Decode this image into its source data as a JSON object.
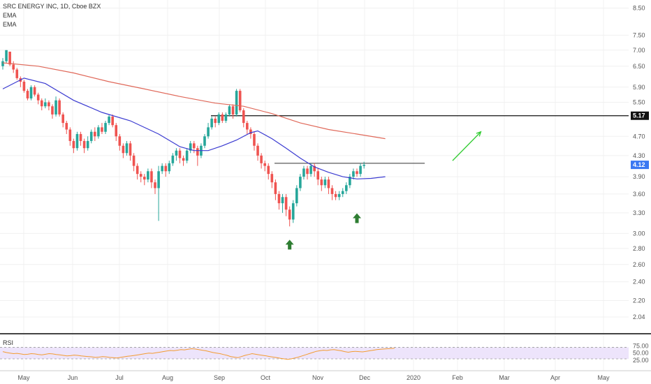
{
  "legend": {
    "title": "SRC ENERGY INC, 1D, Cboe BZX",
    "ema1": "EMA",
    "ema2": "EMA"
  },
  "rsi_label": "RSI",
  "colors": {
    "up": "#26a69a",
    "down": "#ef5350",
    "ema_fast": "#3b3bd1",
    "ema_slow": "#e0695a",
    "arrow_up": "#2e7d32",
    "projection": "#33cc33",
    "rsi_line": "#f39c32",
    "rsi_band": "#ede4fb",
    "current_price_tag": "#3a78f2",
    "resistance_tag": "#111111"
  },
  "chart_data": {
    "type": "candlestick",
    "ylim": [
      1.9,
      8.6
    ],
    "y_ticks": [
      "8.50",
      "7.50",
      "7.00",
      "6.50",
      "5.90",
      "5.50",
      "4.70",
      "4.30",
      "3.90",
      "3.60",
      "3.30",
      "3.00",
      "2.80",
      "2.60",
      "2.40",
      "2.20",
      "2.04"
    ],
    "x_ticks": [
      "May",
      "Jun",
      "Jul",
      "Aug",
      "Sep",
      "Oct",
      "Nov",
      "Dec",
      "2020",
      "Feb",
      "Mar",
      "Apr",
      "May"
    ],
    "price_tags": {
      "resistance": "5.17",
      "current": "4.12"
    },
    "levels": {
      "resistance": 5.17,
      "neckline": 4.15
    },
    "projection": {
      "from": [
        127,
        4.2
      ],
      "to": [
        135,
        4.8
      ]
    },
    "up_arrows": [
      {
        "x": 81,
        "y": 2.85
      },
      {
        "x": 100,
        "y": 3.22
      }
    ],
    "ema_fast_points": [
      [
        0,
        5.85
      ],
      [
        6,
        6.15
      ],
      [
        12,
        6.0
      ],
      [
        20,
        5.55
      ],
      [
        28,
        5.25
      ],
      [
        36,
        5.05
      ],
      [
        44,
        4.75
      ],
      [
        50,
        4.48
      ],
      [
        54,
        4.4
      ],
      [
        58,
        4.4
      ],
      [
        62,
        4.5
      ],
      [
        66,
        4.62
      ],
      [
        70,
        4.78
      ],
      [
        72,
        4.82
      ],
      [
        76,
        4.65
      ],
      [
        80,
        4.45
      ],
      [
        84,
        4.25
      ],
      [
        88,
        4.08
      ],
      [
        92,
        3.98
      ],
      [
        96,
        3.9
      ],
      [
        100,
        3.86
      ],
      [
        104,
        3.87
      ],
      [
        108,
        3.9
      ]
    ],
    "ema_slow_points": [
      [
        0,
        6.6
      ],
      [
        10,
        6.5
      ],
      [
        20,
        6.3
      ],
      [
        30,
        6.05
      ],
      [
        40,
        5.85
      ],
      [
        50,
        5.65
      ],
      [
        60,
        5.48
      ],
      [
        68,
        5.4
      ],
      [
        76,
        5.22
      ],
      [
        84,
        5.0
      ],
      [
        92,
        4.85
      ],
      [
        100,
        4.75
      ],
      [
        108,
        4.65
      ]
    ],
    "candles": [
      [
        6.5,
        6.65,
        6.75,
        6.4
      ],
      [
        6.65,
        7.0,
        7.0,
        6.6
      ],
      [
        6.95,
        6.55,
        6.95,
        6.5
      ],
      [
        6.55,
        6.4,
        6.65,
        6.3
      ],
      [
        6.4,
        6.15,
        6.45,
        6.1
      ],
      [
        6.15,
        6.05,
        6.2,
        5.9
      ],
      [
        6.05,
        5.8,
        6.1,
        5.75
      ],
      [
        5.8,
        5.6,
        5.85,
        5.55
      ],
      [
        5.6,
        5.9,
        5.95,
        5.55
      ],
      [
        5.9,
        5.7,
        5.95,
        5.65
      ],
      [
        5.7,
        5.55,
        5.75,
        5.45
      ],
      [
        5.55,
        5.4,
        5.6,
        5.3
      ],
      [
        5.4,
        5.5,
        5.6,
        5.35
      ],
      [
        5.5,
        5.4,
        5.55,
        5.3
      ],
      [
        5.4,
        5.2,
        5.45,
        5.1
      ],
      [
        5.2,
        5.55,
        5.65,
        5.15
      ],
      [
        5.55,
        5.2,
        5.6,
        5.15
      ],
      [
        5.2,
        5.0,
        5.25,
        4.9
      ],
      [
        5.0,
        4.85,
        5.05,
        4.75
      ],
      [
        4.85,
        4.6,
        4.9,
        4.5
      ],
      [
        4.6,
        4.45,
        4.65,
        4.35
      ],
      [
        4.45,
        4.75,
        4.8,
        4.4
      ],
      [
        4.75,
        4.6,
        4.8,
        4.5
      ],
      [
        4.6,
        4.45,
        4.65,
        4.35
      ],
      [
        4.45,
        4.6,
        4.7,
        4.4
      ],
      [
        4.6,
        4.8,
        4.85,
        4.55
      ],
      [
        4.8,
        4.7,
        4.9,
        4.6
      ],
      [
        4.7,
        4.9,
        4.95,
        4.65
      ],
      [
        4.9,
        4.8,
        5.0,
        4.75
      ],
      [
        4.8,
        5.0,
        5.05,
        4.75
      ],
      [
        5.0,
        5.15,
        5.2,
        4.95
      ],
      [
        5.15,
        4.95,
        5.2,
        4.9
      ],
      [
        4.95,
        4.7,
        5.0,
        4.6
      ],
      [
        4.7,
        4.5,
        4.75,
        4.4
      ],
      [
        4.5,
        4.35,
        4.55,
        4.25
      ],
      [
        4.35,
        4.55,
        4.6,
        4.3
      ],
      [
        4.55,
        4.3,
        4.6,
        4.2
      ],
      [
        4.3,
        4.1,
        4.35,
        4.0
      ],
      [
        4.1,
        3.95,
        4.15,
        3.85
      ],
      [
        3.95,
        3.9,
        4.0,
        3.8
      ],
      [
        3.9,
        3.85,
        3.95,
        3.75
      ],
      [
        3.85,
        4.0,
        4.05,
        3.8
      ],
      [
        4.0,
        3.8,
        4.05,
        3.7
      ],
      [
        3.8,
        3.7,
        3.85,
        3.6
      ],
      [
        3.7,
        4.0,
        4.1,
        3.18
      ],
      [
        4.0,
        4.1,
        4.15,
        3.95
      ],
      [
        4.1,
        4.0,
        4.15,
        3.9
      ],
      [
        4.0,
        4.15,
        4.2,
        3.95
      ],
      [
        4.15,
        4.3,
        4.35,
        4.1
      ],
      [
        4.3,
        4.4,
        4.45,
        4.2
      ],
      [
        4.4,
        4.25,
        4.45,
        4.15
      ],
      [
        4.25,
        4.2,
        4.3,
        4.1
      ],
      [
        4.2,
        4.4,
        4.45,
        4.15
      ],
      [
        4.4,
        4.55,
        4.6,
        4.35
      ],
      [
        4.55,
        4.45,
        4.6,
        4.35
      ],
      [
        4.45,
        4.3,
        4.5,
        4.1
      ],
      [
        4.3,
        4.5,
        4.55,
        4.25
      ],
      [
        4.5,
        4.7,
        4.75,
        4.45
      ],
      [
        4.7,
        4.9,
        5.0,
        4.65
      ],
      [
        4.9,
        5.1,
        5.15,
        4.85
      ],
      [
        5.1,
        5.0,
        5.15,
        4.9
      ],
      [
        5.0,
        5.2,
        5.25,
        4.95
      ],
      [
        5.2,
        5.05,
        5.25,
        5.0
      ],
      [
        5.05,
        5.2,
        5.25,
        5.0
      ],
      [
        5.2,
        5.4,
        5.45,
        5.15
      ],
      [
        5.4,
        5.2,
        5.45,
        5.1
      ],
      [
        5.2,
        5.8,
        5.85,
        5.15
      ],
      [
        5.8,
        5.3,
        5.85,
        5.25
      ],
      [
        5.3,
        5.0,
        5.35,
        4.9
      ],
      [
        5.0,
        4.85,
        5.05,
        4.75
      ],
      [
        4.85,
        4.75,
        4.9,
        4.65
      ],
      [
        4.75,
        4.5,
        4.8,
        4.4
      ],
      [
        4.5,
        4.3,
        4.55,
        4.2
      ],
      [
        4.3,
        4.15,
        4.35,
        4.05
      ],
      [
        4.15,
        4.1,
        4.2,
        4.0
      ],
      [
        4.1,
        3.95,
        4.15,
        3.85
      ],
      [
        3.95,
        3.8,
        4.0,
        3.7
      ],
      [
        3.8,
        3.6,
        3.85,
        3.5
      ],
      [
        3.6,
        3.45,
        3.65,
        3.35
      ],
      [
        3.45,
        3.55,
        3.6,
        3.3
      ],
      [
        3.55,
        3.35,
        3.6,
        3.25
      ],
      [
        3.35,
        3.2,
        3.4,
        3.1
      ],
      [
        3.2,
        3.45,
        3.5,
        3.15
      ],
      [
        3.45,
        3.7,
        3.75,
        3.4
      ],
      [
        3.7,
        3.9,
        3.95,
        3.65
      ],
      [
        3.9,
        4.05,
        4.1,
        3.85
      ],
      [
        4.05,
        3.95,
        4.1,
        3.85
      ],
      [
        3.95,
        4.1,
        4.15,
        3.9
      ],
      [
        4.1,
        4.0,
        4.15,
        3.9
      ],
      [
        4.0,
        3.85,
        4.05,
        3.75
      ],
      [
        3.85,
        3.75,
        3.9,
        3.65
      ],
      [
        3.75,
        3.85,
        3.9,
        3.7
      ],
      [
        3.85,
        3.7,
        3.9,
        3.6
      ],
      [
        3.7,
        3.6,
        3.75,
        3.5
      ],
      [
        3.6,
        3.55,
        3.65,
        3.5
      ],
      [
        3.55,
        3.6,
        3.65,
        3.5
      ],
      [
        3.6,
        3.65,
        3.7,
        3.55
      ],
      [
        3.65,
        3.75,
        3.8,
        3.6
      ],
      [
        3.75,
        3.9,
        3.95,
        3.7
      ],
      [
        3.9,
        4.0,
        4.05,
        3.85
      ],
      [
        4.0,
        3.95,
        4.05,
        3.9
      ],
      [
        3.95,
        4.1,
        4.15,
        3.9
      ],
      [
        4.1,
        4.12,
        4.18,
        4.05
      ]
    ],
    "rsi_ticks": [
      "75.00",
      "50.00",
      "25.00"
    ],
    "rsi_values": [
      55,
      52,
      50,
      48,
      49,
      47,
      45,
      46,
      48,
      47,
      45,
      44,
      46,
      48,
      47,
      45,
      44,
      42,
      40,
      41,
      43,
      42,
      40,
      39,
      38,
      37,
      35,
      36,
      38,
      37,
      35,
      34,
      33,
      35,
      37,
      39,
      40,
      42,
      44,
      46,
      48,
      50,
      49,
      51,
      53,
      55,
      57,
      59,
      58,
      60,
      62,
      61,
      63,
      65,
      64,
      62,
      60,
      58,
      55,
      52,
      50,
      48,
      45,
      42,
      38,
      36,
      34,
      38,
      42,
      45,
      48,
      46,
      44,
      42,
      40,
      38,
      36,
      34,
      32,
      30,
      28,
      30,
      33,
      36,
      40,
      44,
      48,
      52,
      56,
      58,
      60,
      59,
      61,
      62,
      60,
      58,
      55,
      53,
      55,
      56,
      55,
      54,
      56,
      58,
      60,
      62,
      63,
      64,
      65,
      66,
      67
    ]
  }
}
